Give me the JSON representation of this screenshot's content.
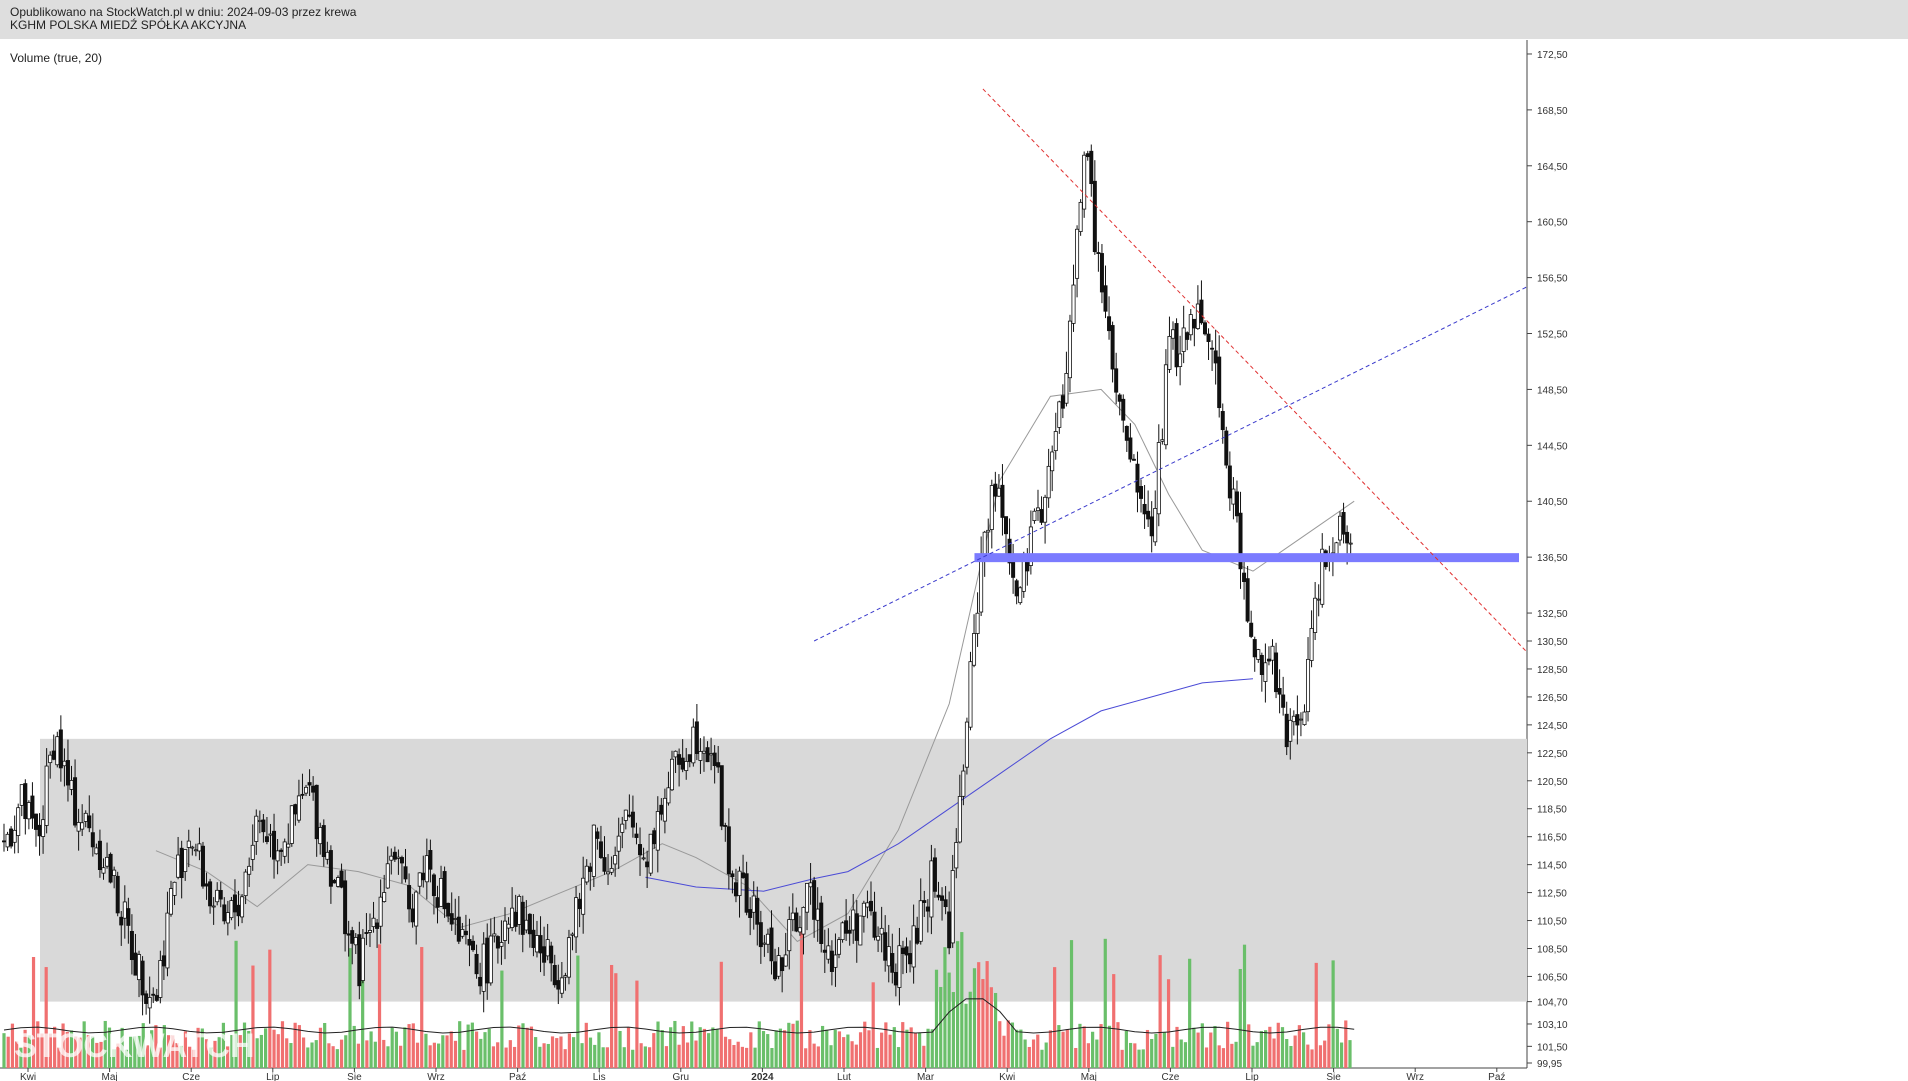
{
  "header": {
    "line1": "Opublikowano na StockWatch.pl w dniu: 2024-09-03 przez krewa",
    "line2": "KGHM POLSKA MIEDŹ SPÓŁKA AKCYJNA"
  },
  "indicator_label": "Volume (true, 20)",
  "watermark": "STOCKWATCH",
  "colors": {
    "background": "#ffffff",
    "header_bg": "#dedede",
    "zone": "#d9d9d9",
    "candle": "#111111",
    "vol_up": "#6abf6a",
    "vol_down": "#f07070",
    "ma_short": "#999999",
    "ma_long": "#4b4bd6",
    "resistance": "#e03030",
    "support": "#3a3acc",
    "band": "#7b7bff"
  },
  "chart_data": {
    "type": "candlestick",
    "ylim": [
      99.95,
      173.5
    ],
    "price_ticks": [
      "172,50",
      "168,50",
      "164,50",
      "160,50",
      "156,50",
      "152,50",
      "148,50",
      "144,50",
      "140,50",
      "136,50",
      "132,50",
      "130,50",
      "128,50",
      "126,50",
      "124,50",
      "122,50",
      "120,50",
      "118,50",
      "116,50",
      "114,50",
      "112,50",
      "110,50",
      "108,50",
      "106,50",
      "104,70",
      "103,10",
      "101,50",
      "99,95"
    ],
    "x_labels": [
      "Kwi",
      "Maj",
      "Cze",
      "Lip",
      "Sie",
      "Wrz",
      "Paź",
      "Lis",
      "Gru",
      "2024",
      "Lut",
      "Mar",
      "Kwi",
      "Maj",
      "Cze",
      "Lip",
      "Sie",
      "Wrz",
      "Paź"
    ],
    "weekly_close": [
      [
        0,
        116
      ],
      [
        2,
        119
      ],
      [
        4,
        116
      ],
      [
        6,
        124
      ],
      [
        8,
        119
      ],
      [
        10,
        117
      ],
      [
        12,
        115
      ],
      [
        14,
        111
      ],
      [
        16,
        107
      ],
      [
        18,
        105
      ],
      [
        20,
        113
      ],
      [
        22,
        117
      ],
      [
        24,
        113
      ],
      [
        26,
        110
      ],
      [
        28,
        112
      ],
      [
        30,
        118
      ],
      [
        32,
        116
      ],
      [
        34,
        117
      ],
      [
        36,
        120
      ],
      [
        38,
        116
      ],
      [
        40,
        112
      ],
      [
        42,
        107
      ],
      [
        44,
        111
      ],
      [
        46,
        116
      ],
      [
        48,
        111
      ],
      [
        50,
        115
      ],
      [
        52,
        112
      ],
      [
        54,
        109
      ],
      [
        56,
        107
      ],
      [
        58,
        108
      ],
      [
        60,
        112
      ],
      [
        62,
        110
      ],
      [
        64,
        108
      ],
      [
        66,
        107
      ],
      [
        68,
        111
      ],
      [
        70,
        117
      ],
      [
        72,
        114
      ],
      [
        74,
        118
      ],
      [
        76,
        115
      ],
      [
        78,
        119
      ],
      [
        80,
        122
      ],
      [
        82,
        124
      ],
      [
        84,
        123
      ],
      [
        86,
        114
      ],
      [
        88,
        112
      ],
      [
        90,
        109
      ],
      [
        92,
        107
      ],
      [
        94,
        111
      ],
      [
        96,
        112
      ],
      [
        98,
        108
      ],
      [
        100,
        110
      ],
      [
        102,
        111
      ],
      [
        104,
        109
      ],
      [
        106,
        107
      ],
      [
        108,
        109
      ],
      [
        110,
        114
      ],
      [
        112,
        110
      ],
      [
        114,
        124
      ],
      [
        116,
        138
      ],
      [
        118,
        142
      ],
      [
        120,
        133
      ],
      [
        122,
        138
      ],
      [
        124,
        143
      ],
      [
        126,
        150
      ],
      [
        128,
        166
      ],
      [
        130,
        156
      ],
      [
        132,
        147
      ],
      [
        134,
        142
      ],
      [
        136,
        138
      ],
      [
        138,
        151
      ],
      [
        140,
        152
      ],
      [
        142,
        155
      ],
      [
        144,
        148
      ],
      [
        146,
        139
      ],
      [
        148,
        129
      ],
      [
        150,
        130
      ],
      [
        152,
        123
      ],
      [
        154,
        126
      ],
      [
        156,
        136
      ],
      [
        158,
        139
      ],
      [
        160,
        138
      ]
    ],
    "zone_range": [
      104.7,
      123.5
    ],
    "support_band": 136.5,
    "resistance_line": [
      [
        116,
        170.0
      ],
      [
        160,
        142.5
      ]
    ],
    "support_line": [
      [
        96,
        130.5
      ],
      [
        116,
        136.5
      ]
    ],
    "ma_short_samples": [
      [
        18,
        115.5
      ],
      [
        24,
        114.0
      ],
      [
        30,
        111.5
      ],
      [
        36,
        114.5
      ],
      [
        42,
        114.0
      ],
      [
        48,
        113.0
      ],
      [
        54,
        110.0
      ],
      [
        60,
        111.0
      ],
      [
        66,
        112.5
      ],
      [
        72,
        114.0
      ],
      [
        78,
        116.0
      ],
      [
        82,
        115.0
      ],
      [
        88,
        113.0
      ],
      [
        94,
        109.0
      ],
      [
        100,
        111.0
      ],
      [
        106,
        117.0
      ],
      [
        112,
        126.0
      ],
      [
        118,
        142.0
      ],
      [
        124,
        148.0
      ],
      [
        130,
        148.5
      ],
      [
        134,
        146.0
      ],
      [
        138,
        141.0
      ],
      [
        142,
        137.0
      ],
      [
        148,
        135.5
      ],
      [
        154,
        138.0
      ],
      [
        160,
        140.5
      ]
    ],
    "ma_long_samples": [
      [
        76,
        113.6
      ],
      [
        82,
        112.9
      ],
      [
        90,
        112.6
      ],
      [
        96,
        113.5
      ],
      [
        100,
        114.0
      ],
      [
        106,
        116.0
      ],
      [
        112,
        118.5
      ],
      [
        118,
        121.0
      ],
      [
        124,
        123.5
      ],
      [
        130,
        125.5
      ],
      [
        136,
        126.5
      ],
      [
        142,
        127.5
      ],
      [
        148,
        127.8
      ]
    ],
    "volume_avg_level": "low"
  }
}
